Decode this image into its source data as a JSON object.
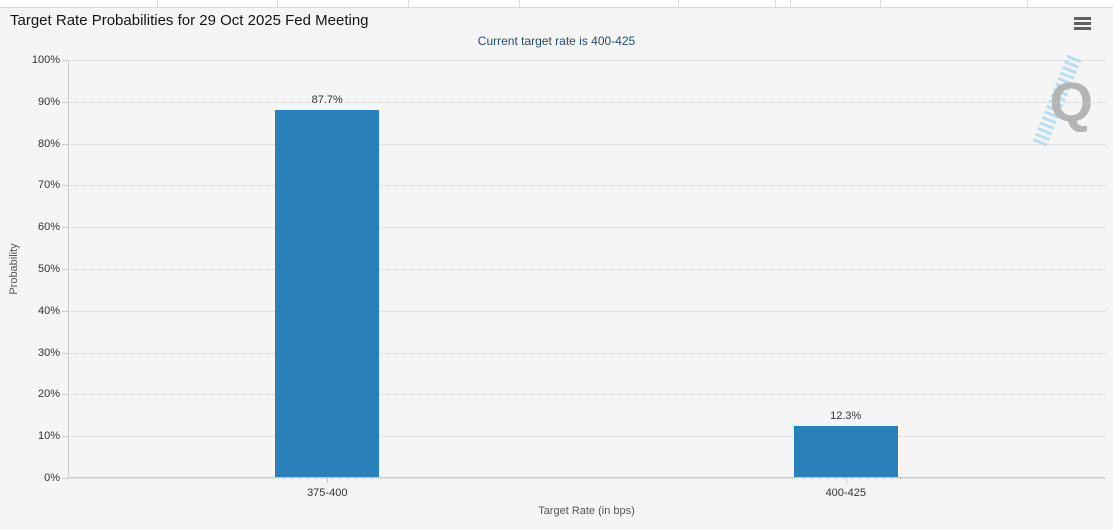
{
  "header": {
    "title": "Target Rate Probabilities for 29 Oct 2025 Fed Meeting",
    "menu_icon": "hamburger-icon"
  },
  "chart_data": {
    "type": "bar",
    "title": "Target Rate Probabilities for 29 Oct 2025 Fed Meeting",
    "subtitle": "Current target rate is 400-425",
    "categories": [
      "375-400",
      "400-425"
    ],
    "values": [
      87.7,
      12.3
    ],
    "value_labels": [
      "87.7%",
      "12.3%"
    ],
    "xlabel": "Target Rate (in bps)",
    "ylabel": "Probability",
    "ylim": [
      0,
      100
    ],
    "ytick_step": 10,
    "ytick_labels": [
      "0%",
      "10%",
      "20%",
      "30%",
      "40%",
      "50%",
      "60%",
      "70%",
      "80%",
      "90%",
      "100%"
    ],
    "grid": "dotted-horizontal",
    "legend": "none",
    "watermark": "Q",
    "colors": {
      "bar": "#2a80b9",
      "subtitle": "#274b6d",
      "gridline": "#d2d2d2",
      "axis_line": "#c9c9c9",
      "panel_background": "#f5f5f6"
    }
  }
}
